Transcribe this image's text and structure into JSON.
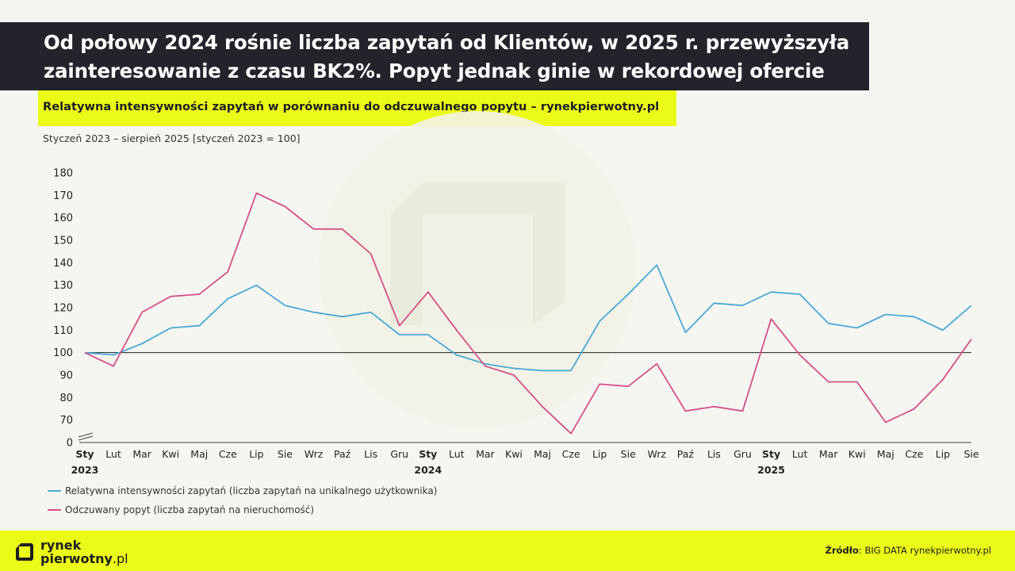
{
  "header": {
    "title_line1": "Od połowy 2024 rośnie liczba zapytań od Klientów, w 2025 r. przewyższyła",
    "title_line2": "zainteresowanie z czasu BK2%. Popyt jednak ginie w rekordowej ofercie",
    "subtitle": "Relatywna intensywności zapytań w porównaniu do odczuwalnego popytu – rynekpierwotny.pl",
    "period": "Styczeń 2023 – sierpień 2025 [styczeń 2023 = 100]"
  },
  "footer": {
    "logo_line1": "rynek",
    "logo_line2": "pierwotny",
    "logo_suffix": ".pl",
    "source_label": "Źródło",
    "source_text": ": BIG DATA rynekpierwotny.pl"
  },
  "colors": {
    "blue": "#4aa8d8",
    "pink": "#d4508a",
    "accent": "#ebfa17",
    "dark": "#23232b"
  },
  "chart_data": {
    "type": "line",
    "y_ticks": [
      "180",
      "170",
      "160",
      "150",
      "140",
      "130",
      "120",
      "110",
      "100",
      "90",
      "80",
      "70",
      "0"
    ],
    "y_tick_values": [
      180,
      170,
      160,
      150,
      140,
      130,
      120,
      110,
      100,
      90,
      80,
      70,
      60
    ],
    "ylim": [
      60,
      180
    ],
    "y_axis_break": true,
    "reference_line": 100,
    "x_labels": [
      "Sty",
      "Lut",
      "Mar",
      "Kwi",
      "Maj",
      "Cze",
      "Lip",
      "Sie",
      "Wrz",
      "Paź",
      "Lis",
      "Gru",
      "Sty",
      "Lut",
      "Mar",
      "Kwi",
      "Maj",
      "Cze",
      "Lip",
      "Sie",
      "Wrz",
      "Paź",
      "Lis",
      "Gru",
      "Sty",
      "Lut",
      "Mar",
      "Kwi",
      "Maj",
      "Cze",
      "Lip",
      "Sie"
    ],
    "bold_x_indices": [
      0,
      12,
      24
    ],
    "year_labels": [
      {
        "index": 0,
        "label": "2023"
      },
      {
        "index": 12,
        "label": "2024"
      },
      {
        "index": 24,
        "label": "2025"
      }
    ],
    "series": [
      {
        "name": "Relatywna intensywności zapytań (liczba zapytań na unikalnego użytkownika)",
        "color": "#4aa8d8",
        "values": [
          100,
          99,
          104,
          111,
          112,
          124,
          130,
          121,
          118,
          116,
          118,
          108,
          108,
          99,
          95,
          93,
          92,
          92,
          114,
          126,
          139,
          109,
          122,
          121,
          127,
          126,
          113,
          111,
          117,
          116,
          110,
          121
        ]
      },
      {
        "name": "Odczuwany popyt (liczba zapytań na nieruchomość)",
        "color": "#d4508a",
        "values": [
          100,
          94,
          118,
          125,
          126,
          136,
          171,
          165,
          155,
          155,
          144,
          112,
          127,
          110,
          94,
          90,
          76,
          64,
          86,
          85,
          95,
          74,
          76,
          74,
          115,
          99,
          87,
          87,
          69,
          75,
          88,
          106
        ]
      }
    ],
    "grid": false,
    "legend_position": "bottom-left"
  }
}
